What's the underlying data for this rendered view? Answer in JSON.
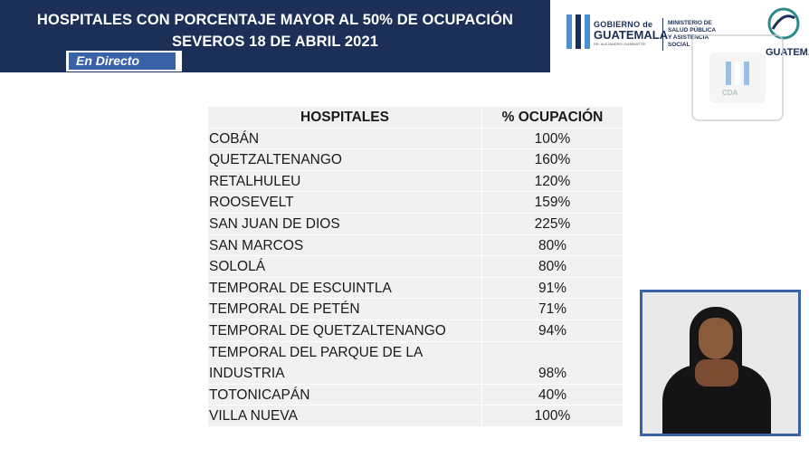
{
  "header": {
    "title_line1": "HOSPITALES CON PORCENTAJE MAYOR AL 50% DE OCUPACIÓN",
    "title_line2": "SEVEROS 18 DE ABRIL 2021",
    "live_label": "En Directo",
    "color": "#1b2f57"
  },
  "logos": {
    "gov_line1": "GOBIERNO de",
    "gov_line2": "GUATEMALA",
    "gov_line3": "DR. ALEJANDRO GIAMMATTEI",
    "ministry": [
      "MINISTERIO DE",
      "SALUD PÚBLICA",
      "Y ASISTENCIA",
      "SOCIAL"
    ],
    "bicentenario": "GUATEMAL",
    "frame_label": "CDA"
  },
  "table": {
    "headers": [
      "HOSPITALES",
      "% OCUPACIÓN"
    ],
    "rows": [
      {
        "hospital": "COBÁN",
        "ocupacion": "100%"
      },
      {
        "hospital": "QUETZALTENANGO",
        "ocupacion": "160%"
      },
      {
        "hospital": "RETALHULEU",
        "ocupacion": "120%"
      },
      {
        "hospital": "ROOSEVELT",
        "ocupacion": "159%"
      },
      {
        "hospital": "SAN JUAN DE DIOS",
        "ocupacion": "225%"
      },
      {
        "hospital": "SAN MARCOS",
        "ocupacion": "80%"
      },
      {
        "hospital": "SOLOLÁ",
        "ocupacion": "80%"
      },
      {
        "hospital": "TEMPORAL DE ESCUINTLA",
        "ocupacion": "91%"
      },
      {
        "hospital": "TEMPORAL DE PETÉN",
        "ocupacion": "71%"
      },
      {
        "hospital": "TEMPORAL DE QUETZALTENANGO",
        "ocupacion": "94%"
      },
      {
        "hospital_line1": "TEMPORAL DEL PARQUE DE LA",
        "hospital_line2": "INDUSTRIA",
        "ocupacion": "98%"
      },
      {
        "hospital": "TOTONICAPÁN",
        "ocupacion": "40%"
      },
      {
        "hospital": "VILLA NUEVA",
        "ocupacion": "100%"
      }
    ]
  }
}
